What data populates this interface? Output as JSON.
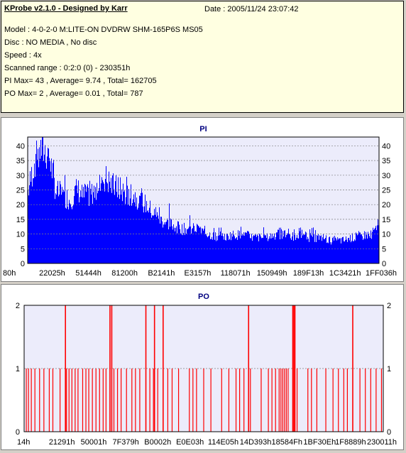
{
  "header": {
    "title": "KProbe v2.1.0 - Designed by Karr",
    "date_label": "Date : 2005/11/24 23:07:42",
    "lines": [
      "Model : 4-0-2-0 M:LITE-ON DVDRW SHM-165P6S MS05",
      "Disc : NO MEDIA , No disc",
      "Speed : 4x",
      "Scanned range : 0:2:0 (0) - 230351h",
      "PI Max= 43 , Average= 9.74 , Total= 162705",
      "PO Max= 2 , Average= 0.01 , Total= 787"
    ]
  },
  "colors": {
    "pi_fill": "#0000ff",
    "po_fill": "#ff0000",
    "plot_bg": "#ececfb",
    "gridline": "#808080",
    "title_color": "#000080"
  },
  "chart_data": [
    {
      "type": "area",
      "title": "PI",
      "ylim": [
        0,
        43
      ],
      "yticks": [
        0,
        5,
        10,
        15,
        20,
        25,
        30,
        35,
        40
      ],
      "xtick_labels": [
        "80h",
        "22025h",
        "51444h",
        "81200h",
        "B2141h",
        "E3157h",
        "118071h",
        "150949h",
        "189F13h",
        "1C3421h",
        "1FF036h"
      ],
      "grid": true,
      "x_fraction": [
        0.0,
        0.02,
        0.04,
        0.06,
        0.08,
        0.1,
        0.12,
        0.14,
        0.16,
        0.18,
        0.2,
        0.22,
        0.24,
        0.26,
        0.28,
        0.3,
        0.32,
        0.34,
        0.36,
        0.38,
        0.4,
        0.42,
        0.44,
        0.46,
        0.48,
        0.5,
        0.52,
        0.54,
        0.56,
        0.58,
        0.6,
        0.62,
        0.64,
        0.66,
        0.68,
        0.7,
        0.72,
        0.74,
        0.76,
        0.78,
        0.8,
        0.82,
        0.84,
        0.86,
        0.88,
        0.9,
        0.92,
        0.94,
        0.96,
        0.98,
        1.0
      ],
      "values": [
        25,
        36,
        40,
        38,
        25,
        24,
        22,
        26,
        23,
        24,
        28,
        30,
        27,
        26,
        24,
        24,
        22,
        20,
        17,
        15,
        14,
        13,
        12,
        12,
        12,
        11,
        10,
        9,
        9,
        10,
        10,
        10,
        9,
        9,
        9,
        10,
        10,
        10,
        9,
        10,
        9,
        9,
        9,
        8,
        8,
        8,
        9,
        9,
        10,
        10,
        13
      ],
      "peaks": [
        43,
        43,
        43,
        40,
        34,
        32,
        30,
        38,
        32,
        30,
        33,
        33,
        31,
        30,
        30,
        28,
        27,
        26,
        24,
        22,
        21,
        20,
        18,
        17,
        16,
        15,
        15,
        14,
        13,
        13,
        13,
        13,
        12,
        12,
        13,
        13,
        13,
        13,
        12,
        13,
        13,
        12,
        12,
        11,
        11,
        11,
        12,
        12,
        13,
        14,
        16
      ]
    },
    {
      "type": "bar",
      "title": "PO",
      "ylim": [
        0,
        2
      ],
      "yticks": [
        0,
        1,
        2
      ],
      "xtick_labels": [
        "14h",
        "21291h",
        "50001h",
        "7F379h",
        "B0002h",
        "E0E03h",
        "114E05h",
        "14D393h",
        "18584Fh",
        "1BF30Eh",
        "1F8889h",
        "230011h"
      ],
      "grid": true,
      "value_2_at_fraction": [
        0.115,
        0.239,
        0.244,
        0.339,
        0.363,
        0.387,
        0.625,
        0.748,
        0.751,
        0.754,
        0.915
      ],
      "value_1_at_fraction": [
        0.006,
        0.012,
        0.02,
        0.03,
        0.043,
        0.055,
        0.07,
        0.08,
        0.1,
        0.118,
        0.125,
        0.133,
        0.142,
        0.15,
        0.163,
        0.172,
        0.18,
        0.19,
        0.2,
        0.21,
        0.22,
        0.228,
        0.25,
        0.26,
        0.27,
        0.285,
        0.3,
        0.31,
        0.322,
        0.35,
        0.36,
        0.372,
        0.4,
        0.412,
        0.43,
        0.46,
        0.47,
        0.48,
        0.5,
        0.52,
        0.55,
        0.57,
        0.59,
        0.6,
        0.612,
        0.63,
        0.66,
        0.68,
        0.69,
        0.7,
        0.71,
        0.715,
        0.72,
        0.725,
        0.73,
        0.735,
        0.76,
        0.79,
        0.8,
        0.815,
        0.84,
        0.86,
        0.875,
        0.89,
        0.9,
        0.935,
        0.95,
        0.965,
        0.98,
        0.995
      ]
    }
  ]
}
